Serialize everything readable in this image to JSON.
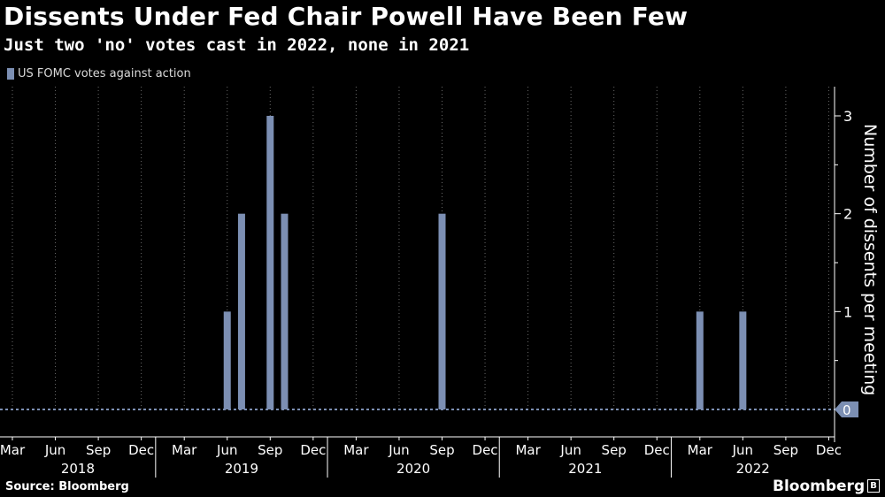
{
  "title": "Dissents Under Fed Chair Powell Have Been Few",
  "subtitle": "Just two 'no' votes cast in 2022, none in 2021",
  "source": "Source: Bloomberg",
  "brand": "Bloomberg",
  "colors": {
    "background": "#000000",
    "bar": "#7c8fb3",
    "grid": "#6a6a6a",
    "axis": "#ffffff",
    "text": "#ffffff"
  },
  "chart_data": {
    "type": "bar",
    "title": "Dissents Under Fed Chair Powell Have Been Few",
    "subtitle": "Just two 'no' votes cast in 2022, none in 2021",
    "ylabel": "Number of dissents per meeting",
    "ylim": [
      0,
      3
    ],
    "yticks": [
      0,
      1,
      2,
      3
    ],
    "y_axis_side": "right",
    "grid": "vertical dotted",
    "legend_position": "top-left",
    "x_tick_labels": [
      "Mar",
      "Jun",
      "Sep",
      "Dec",
      "Mar",
      "Jun",
      "Sep",
      "Dec",
      "Mar",
      "Jun",
      "Sep",
      "Dec",
      "Mar",
      "Jun",
      "Sep",
      "Dec",
      "Mar",
      "Jun",
      "Sep",
      "Dec"
    ],
    "x_year_labels": [
      "2018",
      "2019",
      "2020",
      "2021",
      "2022"
    ],
    "series": [
      {
        "name": "US FOMC votes against action",
        "x": [
          "2018-03",
          "2018-06",
          "2018-08",
          "2018-09",
          "2018-11",
          "2018-12",
          "2019-01",
          "2019-03",
          "2019-05",
          "2019-06",
          "2019-07",
          "2019-09",
          "2019-10",
          "2019-12",
          "2020-01",
          "2020-03",
          "2020-04",
          "2020-06",
          "2020-07",
          "2020-09",
          "2020-11",
          "2020-12",
          "2021-01",
          "2021-03",
          "2021-04",
          "2021-06",
          "2021-07",
          "2021-09",
          "2021-11",
          "2021-12",
          "2022-01",
          "2022-03",
          "2022-05",
          "2022-06",
          "2022-07",
          "2022-09",
          "2022-11",
          "2022-12"
        ],
        "values": [
          0,
          0,
          0,
          0,
          0,
          0,
          0,
          0,
          0,
          1,
          2,
          3,
          2,
          0,
          0,
          0,
          0,
          0,
          0,
          2,
          0,
          0,
          0,
          0,
          0,
          0,
          0,
          0,
          0,
          0,
          0,
          1,
          0,
          1,
          0,
          0,
          0,
          0
        ]
      }
    ],
    "last_value_label": "0"
  }
}
